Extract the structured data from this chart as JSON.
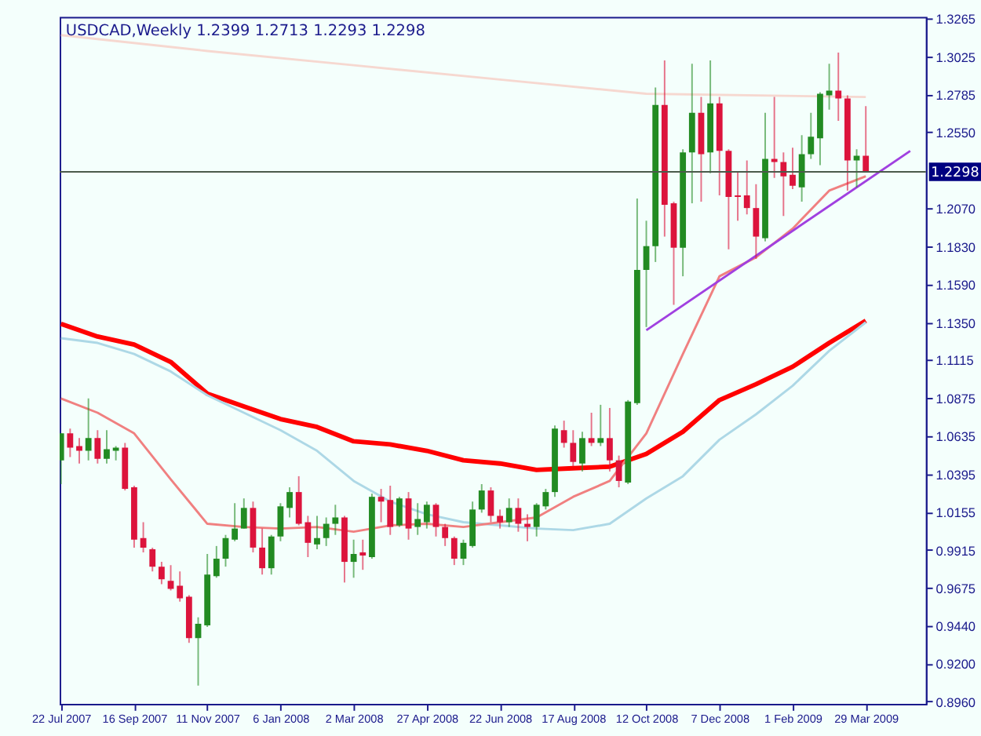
{
  "chart_data": {
    "type": "candlestick",
    "title": "USDCAD,Weekly  1.2399 1.2713 1.2293 1.2298",
    "x": [
      "2007-07-22",
      "2007-07-29",
      "2007-08-05",
      "2007-08-12",
      "2007-08-19",
      "2007-08-26",
      "2007-09-02",
      "2007-09-09",
      "2007-09-16",
      "2007-09-23",
      "2007-09-30",
      "2007-10-07",
      "2007-10-14",
      "2007-10-21",
      "2007-10-28",
      "2007-11-04",
      "2007-11-11",
      "2007-11-18",
      "2007-11-25",
      "2007-12-02",
      "2007-12-09",
      "2007-12-16",
      "2007-12-23",
      "2007-12-30",
      "2008-01-06",
      "2008-01-13",
      "2008-01-20",
      "2008-01-27",
      "2008-02-03",
      "2008-02-10",
      "2008-02-17",
      "2008-02-24",
      "2008-03-02",
      "2008-03-09",
      "2008-03-16",
      "2008-03-23",
      "2008-03-30",
      "2008-04-06",
      "2008-04-13",
      "2008-04-20",
      "2008-04-27",
      "2008-05-04",
      "2008-05-11",
      "2008-05-18",
      "2008-05-25",
      "2008-06-01",
      "2008-06-08",
      "2008-06-15",
      "2008-06-22",
      "2008-06-29",
      "2008-07-06",
      "2008-07-13",
      "2008-07-20",
      "2008-07-27",
      "2008-08-03",
      "2008-08-10",
      "2008-08-17",
      "2008-08-24",
      "2008-08-31",
      "2008-09-07",
      "2008-09-14",
      "2008-09-21",
      "2008-09-28",
      "2008-10-05",
      "2008-10-12",
      "2008-10-19",
      "2008-10-26",
      "2008-11-02",
      "2008-11-09",
      "2008-11-16",
      "2008-11-23",
      "2008-11-30",
      "2008-12-07",
      "2008-12-14",
      "2008-12-21",
      "2008-12-28",
      "2009-01-04",
      "2009-01-11",
      "2009-01-18",
      "2009-01-25",
      "2009-02-01",
      "2009-02-08",
      "2009-02-15",
      "2009-02-22",
      "2009-03-01",
      "2009-03-08",
      "2009-03-15",
      "2009-03-22",
      "2009-03-29"
    ],
    "ohlc": [
      [
        1.048,
        1.065,
        1.033,
        1.065
      ],
      [
        1.065,
        1.068,
        1.05,
        1.056
      ],
      [
        1.057,
        1.062,
        1.046,
        1.054
      ],
      [
        1.054,
        1.087,
        1.048,
        1.062
      ],
      [
        1.062,
        1.067,
        1.046,
        1.049
      ],
      [
        1.049,
        1.067,
        1.046,
        1.055
      ],
      [
        1.054,
        1.057,
        1.048,
        1.056
      ],
      [
        1.056,
        1.059,
        1.029,
        1.03
      ],
      [
        1.031,
        1.032,
        0.993,
        0.998
      ],
      [
        0.999,
        1.009,
        0.99,
        0.993
      ],
      [
        0.992,
        0.993,
        0.978,
        0.981
      ],
      [
        0.981,
        0.984,
        0.97,
        0.973
      ],
      [
        0.972,
        0.982,
        0.966,
        0.967
      ],
      [
        0.969,
        0.978,
        0.959,
        0.961
      ],
      [
        0.962,
        0.963,
        0.933,
        0.936
      ],
      [
        0.936,
        0.949,
        0.906,
        0.945
      ],
      [
        0.944,
        0.989,
        0.943,
        0.976
      ],
      [
        0.975,
        0.994,
        0.974,
        0.986
      ],
      [
        0.986,
        1.001,
        0.981,
        0.999
      ],
      [
        0.998,
        1.021,
        0.997,
        1.005
      ],
      [
        1.005,
        1.024,
        1.005,
        1.018
      ],
      [
        1.018,
        1.022,
        0.99,
        0.993
      ],
      [
        0.993,
        1.005,
        0.976,
        0.98
      ],
      [
        0.98,
        1.001,
        0.976,
        1.0
      ],
      [
        1.0,
        1.021,
        0.997,
        1.019
      ],
      [
        1.018,
        1.031,
        1.012,
        1.028
      ],
      [
        1.028,
        1.038,
        1.007,
        1.008
      ],
      [
        1.009,
        1.013,
        0.987,
        0.996
      ],
      [
        0.995,
        1.013,
        0.992,
        0.999
      ],
      [
        0.999,
        1.012,
        0.994,
        1.008
      ],
      [
        1.008,
        1.02,
        1.001,
        1.012
      ],
      [
        1.012,
        1.013,
        0.971,
        0.984
      ],
      [
        0.984,
        0.998,
        0.974,
        0.989
      ],
      [
        0.99,
        0.998,
        0.979,
        0.988
      ],
      [
        0.987,
        1.027,
        0.986,
        1.025
      ],
      [
        1.025,
        1.03,
        1.009,
        1.022
      ],
      [
        1.023,
        1.032,
        1.001,
        1.006
      ],
      [
        1.007,
        1.025,
        1.006,
        1.024
      ],
      [
        1.024,
        1.028,
        0.998,
        1.005
      ],
      [
        1.006,
        1.021,
        1.001,
        1.011
      ],
      [
        1.009,
        1.022,
        1.005,
        1.02
      ],
      [
        1.02,
        1.021,
        1.0,
        1.006
      ],
      [
        1.006,
        1.008,
        0.994,
        0.999
      ],
      [
        0.999,
        1.0,
        0.982,
        0.986
      ],
      [
        0.986,
        0.998,
        0.982,
        0.996
      ],
      [
        0.994,
        1.022,
        0.993,
        1.017
      ],
      [
        1.017,
        1.033,
        1.015,
        1.029
      ],
      [
        1.029,
        1.031,
        1.009,
        1.013
      ],
      [
        1.013,
        1.017,
        1.005,
        1.009
      ],
      [
        1.009,
        1.024,
        1.006,
        1.018
      ],
      [
        1.018,
        1.024,
        1.003,
        1.008
      ],
      [
        1.008,
        1.014,
        0.997,
        1.006
      ],
      [
        1.006,
        1.021,
        1.0,
        1.02
      ],
      [
        1.019,
        1.03,
        1.017,
        1.028
      ],
      [
        1.028,
        1.07,
        1.025,
        1.068
      ],
      [
        1.067,
        1.073,
        1.056,
        1.059
      ],
      [
        1.059,
        1.067,
        1.044,
        1.047
      ],
      [
        1.046,
        1.066,
        1.041,
        1.062
      ],
      [
        1.062,
        1.078,
        1.057,
        1.059
      ],
      [
        1.059,
        1.083,
        1.057,
        1.062
      ],
      [
        1.062,
        1.081,
        1.041,
        1.048
      ],
      [
        1.048,
        1.051,
        1.031,
        1.035
      ],
      [
        1.034,
        1.086,
        1.033,
        1.085
      ],
      [
        1.084,
        1.213,
        1.083,
        1.168
      ],
      [
        1.168,
        1.199,
        1.132,
        1.183
      ],
      [
        1.183,
        1.283,
        1.173,
        1.272
      ],
      [
        1.272,
        1.3,
        1.189,
        1.209
      ],
      [
        1.21,
        1.211,
        1.146,
        1.182
      ],
      [
        1.182,
        1.244,
        1.164,
        1.242
      ],
      [
        1.242,
        1.298,
        1.21,
        1.267
      ],
      [
        1.267,
        1.277,
        1.211,
        1.241
      ],
      [
        1.242,
        1.3,
        1.229,
        1.273
      ],
      [
        1.273,
        1.277,
        1.215,
        1.243
      ],
      [
        1.243,
        1.244,
        1.181,
        1.214
      ],
      [
        1.215,
        1.23,
        1.199,
        1.214
      ],
      [
        1.215,
        1.237,
        1.203,
        1.207
      ],
      [
        1.207,
        1.222,
        1.175,
        1.189
      ],
      [
        1.188,
        1.267,
        1.186,
        1.238
      ],
      [
        1.238,
        1.277,
        1.226,
        1.236
      ],
      [
        1.236,
        1.242,
        1.202,
        1.227
      ],
      [
        1.228,
        1.245,
        1.219,
        1.221
      ],
      [
        1.22,
        1.253,
        1.211,
        1.241
      ],
      [
        1.241,
        1.267,
        1.238,
        1.252
      ],
      [
        1.251,
        1.28,
        1.234,
        1.279
      ],
      [
        1.278,
        1.298,
        1.269,
        1.281
      ],
      [
        1.281,
        1.305,
        1.262,
        1.276
      ],
      [
        1.276,
        1.278,
        1.218,
        1.237
      ],
      [
        1.237,
        1.244,
        1.22,
        1.24
      ],
      [
        1.2399,
        1.2713,
        1.2293,
        1.2298
      ]
    ],
    "colors": [
      "#228b22",
      "#dc143c",
      "#dc143c",
      "#228b22",
      "#dc143c",
      "#228b22",
      "#228b22",
      "#dc143c",
      "#dc143c",
      "#dc143c",
      "#dc143c",
      "#dc143c",
      "#dc143c",
      "#dc143c",
      "#dc143c",
      "#228b22",
      "#228b22",
      "#228b22",
      "#228b22",
      "#228b22",
      "#228b22",
      "#dc143c",
      "#dc143c",
      "#228b22",
      "#228b22",
      "#228b22",
      "#dc143c",
      "#dc143c",
      "#228b22",
      "#228b22",
      "#228b22",
      "#dc143c",
      "#228b22",
      "#dc143c",
      "#228b22",
      "#dc143c",
      "#dc143c",
      "#228b22",
      "#dc143c",
      "#228b22",
      "#228b22",
      "#dc143c",
      "#dc143c",
      "#dc143c",
      "#228b22",
      "#228b22",
      "#228b22",
      "#dc143c",
      "#dc143c",
      "#228b22",
      "#dc143c",
      "#dc143c",
      "#228b22",
      "#228b22",
      "#228b22",
      "#dc143c",
      "#dc143c",
      "#228b22",
      "#dc143c",
      "#228b22",
      "#dc143c",
      "#dc143c",
      "#228b22",
      "#228b22",
      "#228b22",
      "#228b22",
      "#dc143c",
      "#dc143c",
      "#228b22",
      "#228b22",
      "#dc143c",
      "#228b22",
      "#dc143c",
      "#dc143c",
      "#dc143c",
      "#dc143c",
      "#dc143c",
      "#228b22",
      "#dc143c",
      "#dc143c",
      "#dc143c",
      "#228b22",
      "#228b22",
      "#228b22",
      "#228b22",
      "#dc143c",
      "#dc143c",
      "#228b22",
      "#dc143c"
    ],
    "series": [
      {
        "type": "line",
        "color": "#f6d8d0",
        "x": [
          "2007-07-22",
          "2007-11-11",
          "2008-03-02",
          "2008-06-22",
          "2008-10-12",
          "2009-03-29"
        ],
        "values": [
          1.316,
          1.306,
          1.297,
          1.288,
          1.279,
          1.277
        ]
      },
      {
        "type": "line",
        "color": "#ff0000",
        "x": [
          "2007-07-22",
          "2007-08-19",
          "2007-09-16",
          "2007-10-14",
          "2007-11-11",
          "2007-12-09",
          "2008-01-06",
          "2008-02-03",
          "2008-03-02",
          "2008-03-30",
          "2008-04-27",
          "2008-05-25",
          "2008-06-22",
          "2008-07-20",
          "2008-08-17",
          "2008-09-14",
          "2008-10-12",
          "2008-11-09",
          "2008-12-07",
          "2009-01-04",
          "2009-02-01",
          "2009-03-01",
          "2009-03-29"
        ],
        "values": [
          1.134,
          1.126,
          1.121,
          1.11,
          1.09,
          1.082,
          1.074,
          1.069,
          1.06,
          1.058,
          1.054,
          1.048,
          1.046,
          1.042,
          1.043,
          1.044,
          1.052,
          1.066,
          1.086,
          1.096,
          1.107,
          1.122,
          1.136
        ]
      },
      {
        "type": "line",
        "color": "#add8e6",
        "x": [
          "2007-07-22",
          "2007-08-19",
          "2007-09-16",
          "2007-10-14",
          "2007-11-11",
          "2007-12-09",
          "2008-01-06",
          "2008-02-03",
          "2008-03-02",
          "2008-03-30",
          "2008-04-27",
          "2008-05-25",
          "2008-06-22",
          "2008-07-20",
          "2008-08-17",
          "2008-09-14",
          "2008-10-12",
          "2008-11-09",
          "2008-12-07",
          "2009-01-04",
          "2009-02-01",
          "2009-03-01",
          "2009-03-29"
        ],
        "values": [
          1.125,
          1.122,
          1.115,
          1.104,
          1.089,
          1.078,
          1.067,
          1.054,
          1.035,
          1.022,
          1.014,
          1.009,
          1.007,
          1.005,
          1.004,
          1.008,
          1.024,
          1.038,
          1.061,
          1.077,
          1.095,
          1.117,
          1.135
        ]
      },
      {
        "type": "line",
        "color": "#f08080",
        "x": [
          "2007-07-22",
          "2007-08-19",
          "2007-09-16",
          "2007-10-14",
          "2007-11-11",
          "2007-12-09",
          "2008-01-06",
          "2008-02-03",
          "2008-03-02",
          "2008-03-30",
          "2008-04-27",
          "2008-05-25",
          "2008-06-22",
          "2008-07-20",
          "2008-08-17",
          "2008-09-14",
          "2008-10-12",
          "2008-11-09",
          "2008-12-07",
          "2009-01-04",
          "2009-02-01",
          "2009-03-01",
          "2009-03-29"
        ],
        "values": [
          1.087,
          1.078,
          1.065,
          1.036,
          1.008,
          1.006,
          1.005,
          1.006,
          1.003,
          1.007,
          1.008,
          1.006,
          1.009,
          1.012,
          1.025,
          1.035,
          1.065,
          1.115,
          1.164,
          1.176,
          1.194,
          1.218,
          1.227
        ]
      },
      {
        "type": "line",
        "color": "#a040e0",
        "x": [
          "2008-10-12",
          "2009-05-02"
        ],
        "values": [
          1.13,
          1.243
        ]
      }
    ],
    "ref_lines": [
      {
        "axis": "y",
        "value": 1.2298,
        "label": "1.2298",
        "color": "#4b5a4b"
      }
    ],
    "xlim": [
      "2007-07-21",
      "2009-05-14"
    ],
    "xticks": [
      {
        "value": "2007-07-22",
        "label": "22 Jul 2007"
      },
      {
        "value": "2007-09-16",
        "label": "16 Sep 2007"
      },
      {
        "value": "2007-11-11",
        "label": "11 Nov 2007"
      },
      {
        "value": "2008-01-06",
        "label": "6 Jan 2008"
      },
      {
        "value": "2008-03-02",
        "label": "2 Mar 2008"
      },
      {
        "value": "2008-04-27",
        "label": "27 Apr 2008"
      },
      {
        "value": "2008-06-22",
        "label": "22 Jun 2008"
      },
      {
        "value": "2008-08-17",
        "label": "17 Aug 2008"
      },
      {
        "value": "2008-10-12",
        "label": "12 Oct 2008"
      },
      {
        "value": "2008-12-07",
        "label": "7 Dec 2008"
      },
      {
        "value": "2009-02-01",
        "label": "1 Feb 2009"
      },
      {
        "value": "2009-03-29",
        "label": "29 Mar 2009"
      }
    ],
    "ylim": [
      0.8945,
      1.3275
    ],
    "yticks": [
      1.3265,
      1.3025,
      1.2785,
      {
        "value": 1.255,
        "label": "1.2550"
      },
      {
        "value": 1.207,
        "label": "1.2070"
      },
      {
        "value": 1.183,
        "label": "1.1830"
      },
      {
        "value": 1.159,
        "label": "1.1590"
      },
      {
        "value": 1.135,
        "label": "1.1350"
      },
      1.1115,
      1.0875,
      1.0635,
      1.0395,
      1.0155,
      0.9915,
      0.9675,
      {
        "value": 0.944,
        "label": "0.9440"
      },
      {
        "value": 0.92,
        "label": "0.9200"
      },
      {
        "value": 0.896,
        "label": "0.8960"
      }
    ]
  }
}
